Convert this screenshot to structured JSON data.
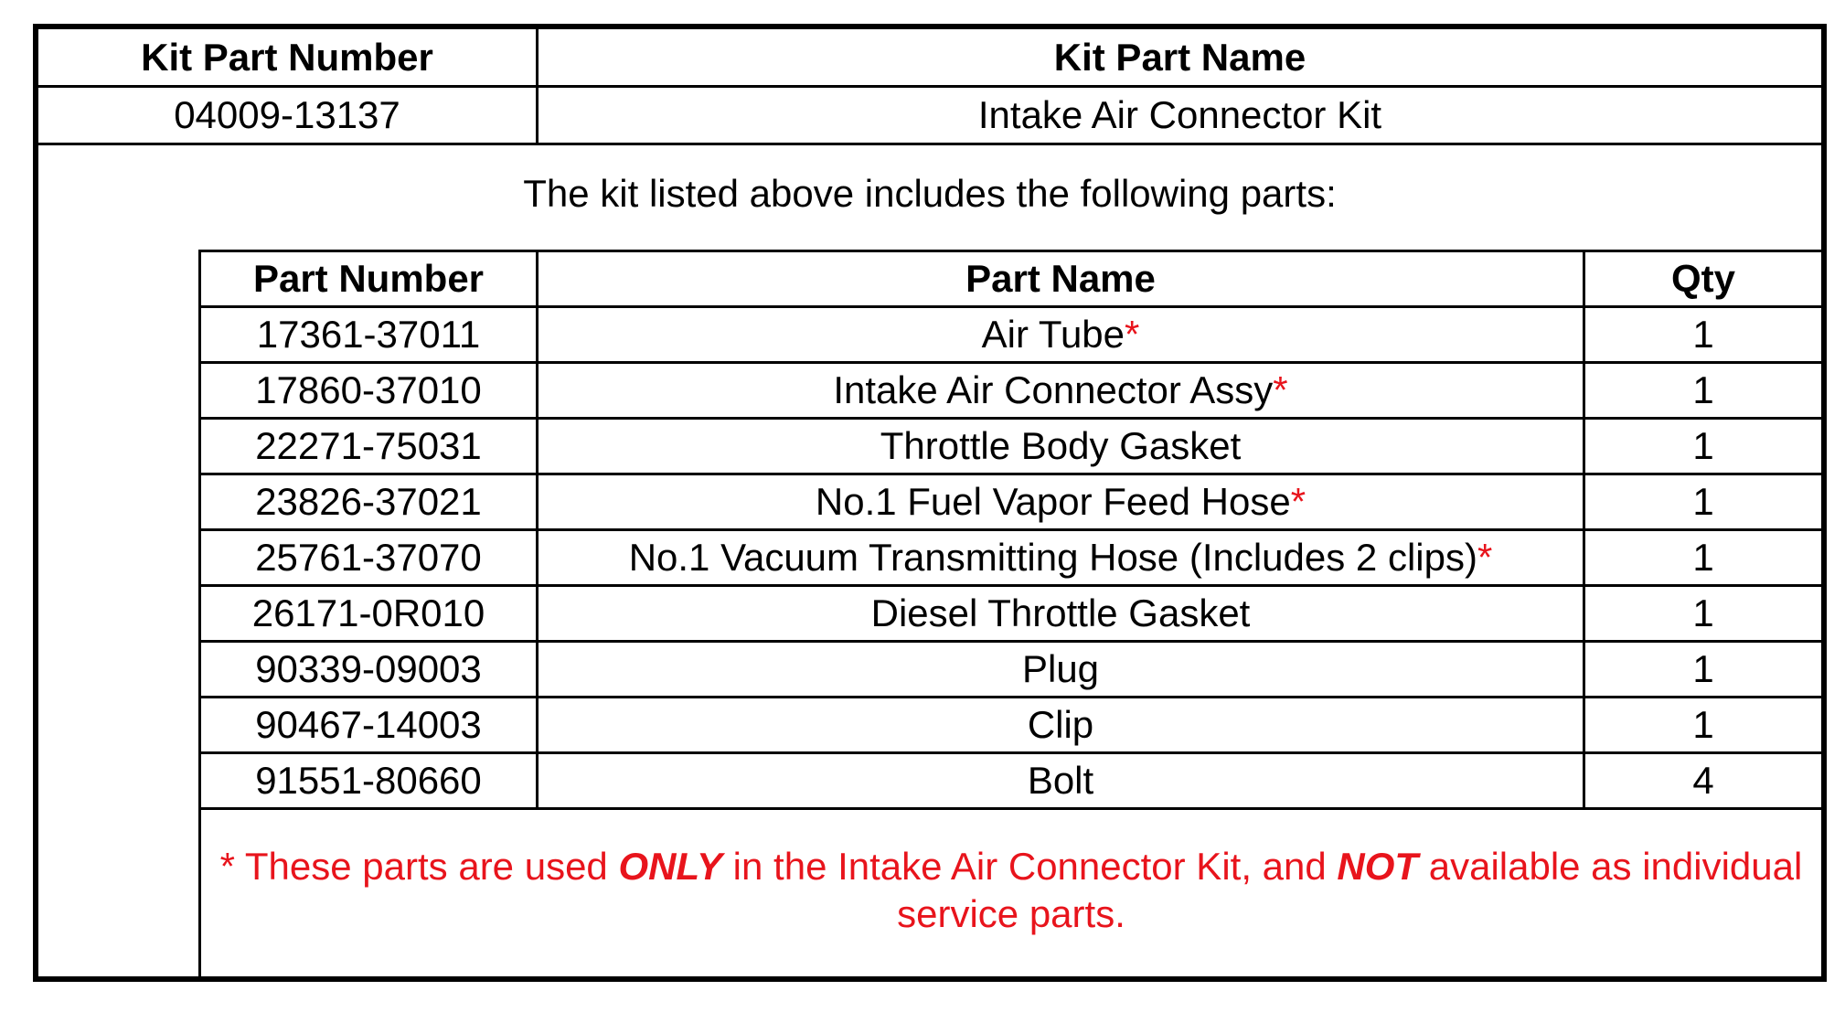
{
  "kit_table": {
    "headers": [
      "Kit Part Number",
      "Kit Part Name"
    ],
    "row": {
      "number": "04009-13137",
      "name": "Intake Air Connector Kit"
    }
  },
  "intro": "The kit listed above includes the following parts:",
  "parts_table": {
    "headers": [
      "Part Number",
      "Part Name",
      "Qty"
    ],
    "rows": [
      {
        "number": "17361-37011",
        "name": "Air Tube",
        "exclusive": true,
        "qty": "1"
      },
      {
        "number": "17860-37010",
        "name": "Intake Air Connector Assy",
        "exclusive": true,
        "qty": "1"
      },
      {
        "number": "22271-75031",
        "name": "Throttle Body Gasket",
        "exclusive": false,
        "qty": "1"
      },
      {
        "number": "23826-37021",
        "name": "No.1 Fuel Vapor Feed Hose",
        "exclusive": true,
        "qty": "1"
      },
      {
        "number": "25761-37070",
        "name": "No.1 Vacuum Transmitting Hose (Includes 2 clips)",
        "exclusive": true,
        "qty": "1"
      },
      {
        "number": "26171-0R010",
        "name": "Diesel Throttle Gasket",
        "exclusive": false,
        "qty": "1"
      },
      {
        "number": "90339-09003",
        "name": "Plug",
        "exclusive": false,
        "qty": "1"
      },
      {
        "number": "90467-14003",
        "name": "Clip",
        "exclusive": false,
        "qty": "1"
      },
      {
        "number": "91551-80660",
        "name": "Bolt",
        "exclusive": false,
        "qty": "4"
      }
    ],
    "asterisk": "*"
  },
  "footnote": {
    "part1": "* These parts are used ",
    "emph1": "ONLY",
    "part2": " in the Intake Air Connector Kit, and ",
    "emph2": "NOT",
    "part3": " available as individual service parts."
  },
  "colors": {
    "note_red": "#e8141c",
    "border": "#000000"
  }
}
